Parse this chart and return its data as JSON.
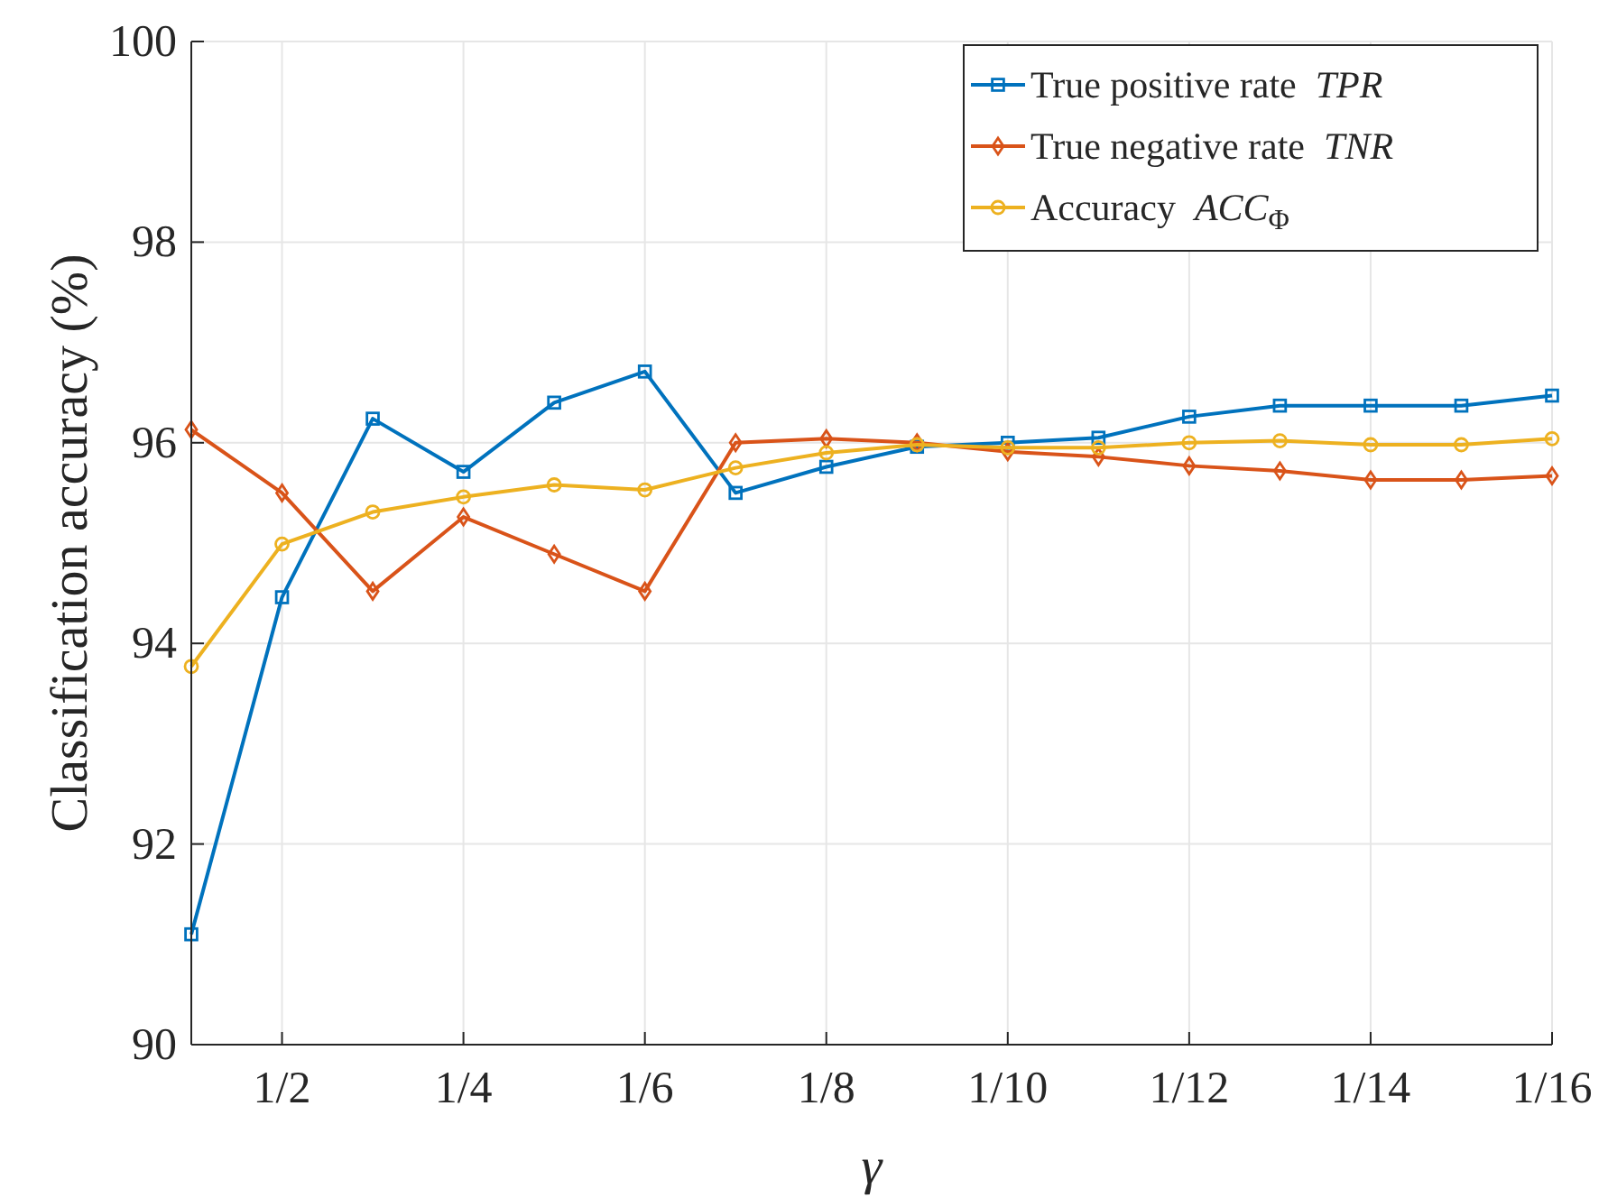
{
  "chart_data": {
    "type": "line",
    "xlabel": "γ",
    "ylabel": "Classification accuracy (%)",
    "categories": [
      null,
      "1/2",
      null,
      "1/4",
      null,
      "1/6",
      null,
      "1/8",
      null,
      "1/10",
      null,
      "1/12",
      null,
      "1/14",
      null,
      "1/16"
    ],
    "ylim": [
      90,
      100
    ],
    "yticks": [
      90,
      92,
      94,
      96,
      98,
      100
    ],
    "grid": true,
    "legend": "top right",
    "series": [
      {
        "name": "True positive rate  TPR",
        "color": "#0072bd",
        "marker": "square",
        "values": [
          91.1,
          94.46,
          96.24,
          95.71,
          96.4,
          96.71,
          95.5,
          95.76,
          95.96,
          96.0,
          96.05,
          96.26,
          96.37,
          96.37,
          96.37,
          96.47
        ]
      },
      {
        "name": "True negative rate  TNR",
        "color": "#d95319",
        "marker": "diamond",
        "values": [
          96.13,
          95.5,
          94.52,
          95.26,
          94.89,
          94.52,
          96.0,
          96.04,
          96.0,
          95.91,
          95.86,
          95.77,
          95.72,
          95.63,
          95.63,
          95.67
        ]
      },
      {
        "name": "Accuracy  ACC$_{Φ}$",
        "color": "#edb120",
        "marker": "circle",
        "values": [
          93.77,
          94.99,
          95.31,
          95.46,
          95.58,
          95.53,
          95.75,
          95.9,
          95.98,
          95.95,
          95.95,
          96.0,
          96.02,
          95.98,
          95.98,
          96.04
        ]
      }
    ]
  }
}
